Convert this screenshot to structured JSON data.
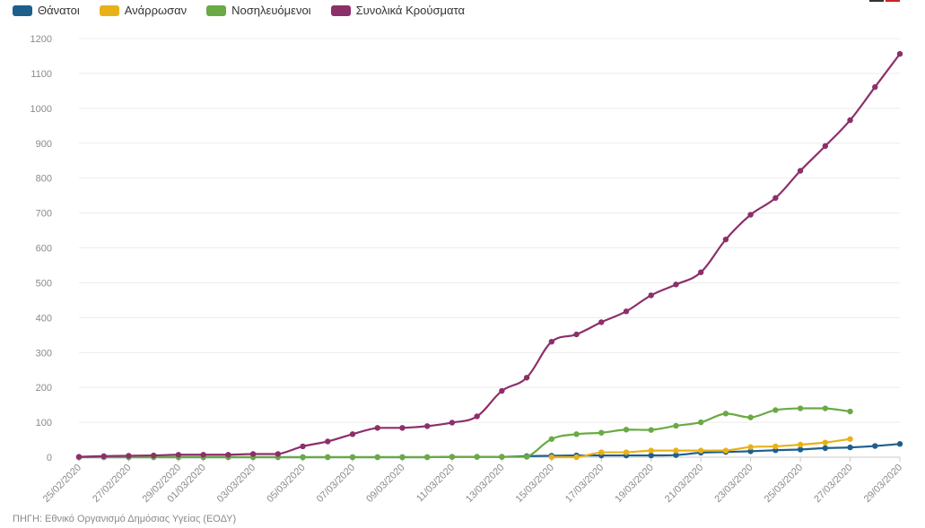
{
  "legend": [
    {
      "label": "Θάνατοι",
      "color": "#1e5f8c"
    },
    {
      "label": "Ανάρρωσαν",
      "color": "#e8b118"
    },
    {
      "label": "Νοσηλευόμενοι",
      "color": "#6aaa44"
    },
    {
      "label": "Συνολικά Κρούσματα",
      "color": "#8c2f6a"
    }
  ],
  "corner_flag_colors": [
    "#333333",
    "#cc2222"
  ],
  "source": "ΠΗΓΗ: Εθνικό Οργανισμό Δημόσιας Υγείας (ΕΟΔΥ)",
  "chart_data": {
    "type": "line",
    "ylim": [
      0,
      1200
    ],
    "yticks": [
      0,
      100,
      200,
      300,
      400,
      500,
      600,
      700,
      800,
      900,
      1000,
      1100,
      1200
    ],
    "grid": true,
    "legend_position": "top-left",
    "x": [
      "25/02/2020",
      "26/02/2020",
      "27/02/2020",
      "28/02/2020",
      "29/02/2020",
      "01/03/2020",
      "02/03/2020",
      "03/03/2020",
      "04/03/2020",
      "05/03/2020",
      "06/03/2020",
      "07/03/2020",
      "08/03/2020",
      "09/03/2020",
      "10/03/2020",
      "11/03/2020",
      "12/03/2020",
      "13/03/2020",
      "14/03/2020",
      "15/03/2020",
      "16/03/2020",
      "17/03/2020",
      "18/03/2020",
      "19/03/2020",
      "20/03/2020",
      "21/03/2020",
      "22/03/2020",
      "23/03/2020",
      "24/03/2020",
      "25/03/2020",
      "26/03/2020",
      "27/03/2020",
      "28/03/2020",
      "29/03/2020"
    ],
    "xtick_labels": [
      "25/02/2020",
      "27/02/2020",
      "29/02/2020",
      "01/03/2020",
      "03/03/2020",
      "05/03/2020",
      "07/03/2020",
      "09/03/2020",
      "11/03/2020",
      "13/03/2020",
      "15/03/2020",
      "17/03/2020",
      "19/03/2020",
      "21/03/2020",
      "23/03/2020",
      "25/03/2020",
      "27/03/2020",
      "29/03/2020"
    ],
    "series": [
      {
        "name": "Θάνατοι",
        "color": "#1e5f8c",
        "values": [
          0,
          0,
          0,
          0,
          0,
          0,
          0,
          0,
          0,
          0,
          0,
          0,
          0,
          0,
          0,
          1,
          1,
          1,
          3,
          4,
          5,
          5,
          5,
          5,
          6,
          13,
          15,
          17,
          20,
          22,
          26,
          28,
          32,
          38
        ]
      },
      {
        "name": "Ανάρρωσαν",
        "color": "#e8b118",
        "values": [
          null,
          null,
          null,
          null,
          null,
          null,
          null,
          null,
          null,
          null,
          null,
          null,
          null,
          null,
          null,
          null,
          null,
          null,
          null,
          0,
          0,
          14,
          14,
          19,
          19,
          19,
          19,
          29,
          31,
          36,
          42,
          52,
          null,
          null
        ]
      },
      {
        "name": "Νοσηλευόμενοι",
        "color": "#6aaa44",
        "values": [
          0,
          0,
          0,
          0,
          0,
          0,
          0,
          0,
          0,
          0,
          0,
          0,
          0,
          0,
          0,
          1,
          1,
          1,
          1,
          52,
          66,
          70,
          79,
          78,
          90,
          100,
          125,
          114,
          135,
          140,
          140,
          131,
          null,
          null
        ]
      },
      {
        "name": "Συνολικά Κρούσματα",
        "color": "#8c2f6a",
        "values": [
          1,
          3,
          4,
          5,
          7,
          7,
          7,
          9,
          9,
          31,
          45,
          66,
          84,
          84,
          89,
          99,
          117,
          190,
          228,
          331,
          352,
          387,
          418,
          464,
          495,
          530,
          624,
          695,
          743,
          821,
          892,
          966,
          1061,
          1156
        ]
      }
    ]
  }
}
